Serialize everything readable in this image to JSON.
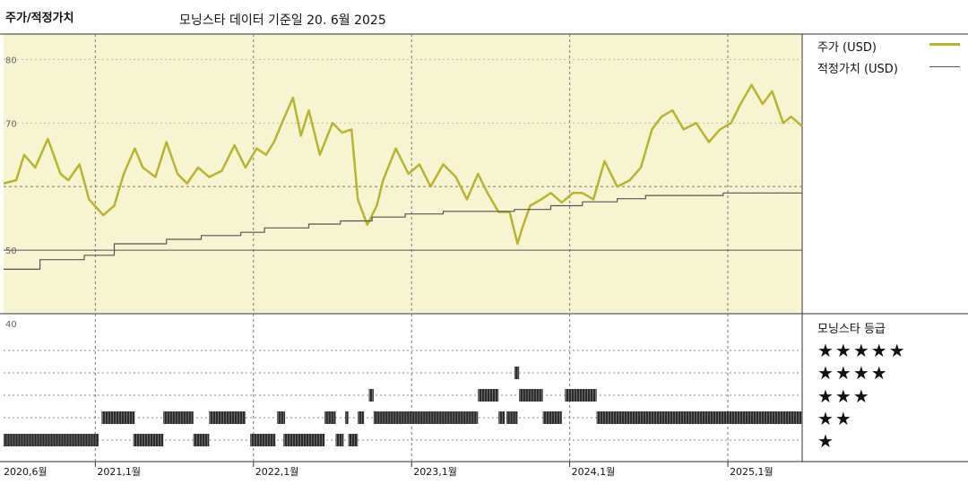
{
  "header": {
    "title": "주가/적정가치",
    "subtitle": "모닝스타 데이터 기준일 20. 6월 2025"
  },
  "legend": [
    {
      "label": "주가 (USD)",
      "color": "#b8b430",
      "style": "thick"
    },
    {
      "label": "적정가치 (USD)",
      "color": "#555555",
      "style": "thin"
    }
  ],
  "rating_panel": {
    "title": "모닝스타 등급",
    "levels": [
      "★★★★★",
      "★★★★",
      "★★★",
      "★★",
      "★"
    ]
  },
  "chart_data": {
    "type": "line",
    "x_tick_labels": [
      "2020,6월",
      "2021,1월",
      "2022,1월",
      "2023,1월",
      "2024,1월",
      "2025,1월"
    ],
    "x_ticks": [
      2020.42,
      2021.0,
      2022.0,
      2023.0,
      2024.0,
      2025.0
    ],
    "xlim": [
      2020.42,
      2025.47
    ],
    "ylim": [
      40,
      84
    ],
    "y_tick_labels": [
      "80",
      "70",
      "50",
      "40"
    ],
    "y_ticks": [
      80,
      70,
      50,
      40
    ],
    "y_dashed_lines": [
      60
    ],
    "y_solid_lines": [
      50
    ],
    "background": "#f7f4d2",
    "series": [
      {
        "name": "주가 (USD)",
        "color": "#b8b430",
        "x": [
          2020.42,
          2020.5,
          2020.55,
          2020.62,
          2020.7,
          2020.78,
          2020.83,
          2020.9,
          2020.96,
          2021.05,
          2021.12,
          2021.18,
          2021.25,
          2021.3,
          2021.38,
          2021.45,
          2021.52,
          2021.58,
          2021.65,
          2021.72,
          2021.8,
          2021.88,
          2021.95,
          2022.02,
          2022.08,
          2022.13,
          2022.18,
          2022.25,
          2022.3,
          2022.35,
          2022.42,
          2022.5,
          2022.56,
          2022.62,
          2022.66,
          2022.72,
          2022.78,
          2022.82,
          2022.9,
          2022.98,
          2023.05,
          2023.12,
          2023.2,
          2023.28,
          2023.35,
          2023.42,
          2023.48,
          2023.55,
          2023.62,
          2023.67,
          2023.7,
          2023.75,
          2023.82,
          2023.88,
          2023.95,
          2024.02,
          2024.08,
          2024.15,
          2024.22,
          2024.3,
          2024.38,
          2024.45,
          2024.52,
          2024.58,
          2024.65,
          2024.72,
          2024.8,
          2024.88,
          2024.95,
          2025.02,
          2025.08,
          2025.15,
          2025.22,
          2025.28,
          2025.35,
          2025.4,
          2025.47
        ],
        "y": [
          60.5,
          61.0,
          65.0,
          63.0,
          67.5,
          62.0,
          61.0,
          63.5,
          58.0,
          55.5,
          57.0,
          62.0,
          66.0,
          63.0,
          61.5,
          67.0,
          62.0,
          60.5,
          63.0,
          61.5,
          62.5,
          66.5,
          63.0,
          66.0,
          65.0,
          67.0,
          70.0,
          74.0,
          68.0,
          72.0,
          65.0,
          70.0,
          68.5,
          69.0,
          58.0,
          54.0,
          57.0,
          61.0,
          66.0,
          62.0,
          63.5,
          60.0,
          63.5,
          61.5,
          58.0,
          62.0,
          59.0,
          56.0,
          56.0,
          51.0,
          53.5,
          57.0,
          58.0,
          59.0,
          57.5,
          59.0,
          59.0,
          58.0,
          64.0,
          60.0,
          61.0,
          63.0,
          69.0,
          71.0,
          72.0,
          69.0,
          70.0,
          67.0,
          69.0,
          70.0,
          73.0,
          76.0,
          73.0,
          75.0,
          70.0,
          71.0,
          69.5
        ]
      },
      {
        "name": "적정가치 (USD)",
        "color": "#555555",
        "x": [
          2020.42,
          2020.65,
          2020.65,
          2020.93,
          2020.93,
          2021.12,
          2021.12,
          2021.45,
          2021.45,
          2021.67,
          2021.67,
          2021.92,
          2021.92,
          2022.07,
          2022.07,
          2022.35,
          2022.35,
          2022.55,
          2022.55,
          2022.75,
          2022.75,
          2022.96,
          2022.96,
          2023.2,
          2023.2,
          2023.65,
          2023.65,
          2023.88,
          2023.88,
          2024.08,
          2024.08,
          2024.3,
          2024.3,
          2024.48,
          2024.48,
          2024.97,
          2024.97,
          2025.47
        ],
        "y": [
          47.0,
          47.0,
          48.5,
          48.5,
          49.2,
          49.2,
          51.0,
          51.0,
          51.7,
          51.7,
          52.3,
          52.3,
          52.8,
          52.8,
          53.5,
          53.5,
          54.1,
          54.1,
          54.6,
          54.6,
          55.2,
          55.2,
          55.7,
          55.7,
          56.1,
          56.1,
          56.4,
          56.4,
          57.0,
          57.0,
          57.6,
          57.6,
          58.1,
          58.1,
          58.6,
          58.6,
          59.0,
          59.0
        ]
      }
    ],
    "ratings_series": {
      "name": "모닝스타 등급",
      "segments": [
        [
          2020.42,
          2021.02,
          1
        ],
        [
          2021.04,
          2021.25,
          2
        ],
        [
          2021.24,
          2021.43,
          1
        ],
        [
          2021.43,
          2021.62,
          2
        ],
        [
          2021.62,
          2021.72,
          1
        ],
        [
          2021.72,
          2021.95,
          2
        ],
        [
          2021.98,
          2022.14,
          1
        ],
        [
          2022.15,
          2022.2,
          2
        ],
        [
          2022.19,
          2022.45,
          1
        ],
        [
          2022.45,
          2022.52,
          2
        ],
        [
          2022.52,
          2022.57,
          1
        ],
        [
          2022.58,
          2022.6,
          2
        ],
        [
          2022.6,
          2022.66,
          1
        ],
        [
          2022.66,
          2022.7,
          2
        ],
        [
          2022.73,
          2022.76,
          3
        ],
        [
          2022.76,
          2023.42,
          2
        ],
        [
          2023.42,
          2023.55,
          3
        ],
        [
          2023.55,
          2023.59,
          2
        ],
        [
          2023.65,
          2023.68,
          4
        ],
        [
          2023.6,
          2023.67,
          2
        ],
        [
          2023.68,
          2023.83,
          3
        ],
        [
          2023.83,
          2023.95,
          2
        ],
        [
          2023.97,
          2024.17,
          3
        ],
        [
          2024.17,
          2025.47,
          2
        ]
      ]
    }
  }
}
